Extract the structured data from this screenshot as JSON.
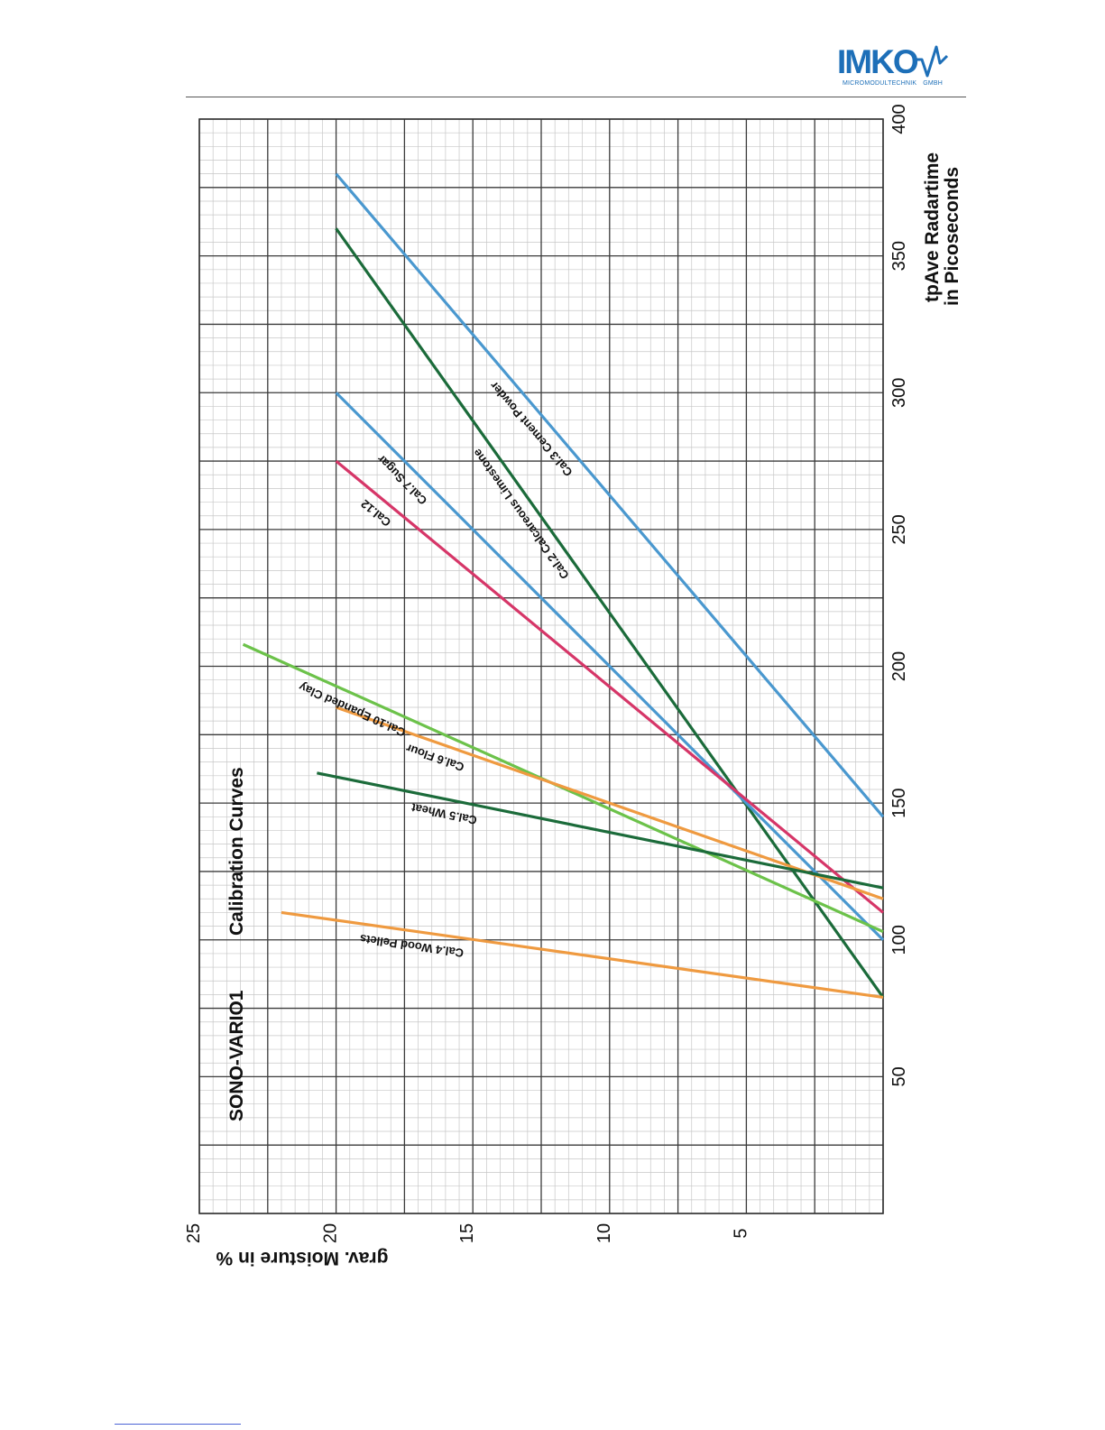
{
  "logo": {
    "name": "IMKO",
    "subtitle": "MICROMODULTECHNIK",
    "subtitle_suffix": "GMBH",
    "color": "#1d6fb8"
  },
  "chart_data": {
    "type": "line",
    "title": "SONO-VARIO1",
    "subtitle": "Calibration Curves",
    "xlabel": "grav. Moisture in %",
    "ylabel_line1": "tpAve  Radartime",
    "ylabel_line2": "in Picoseconds",
    "xlim": [
      0,
      25
    ],
    "ylim": [
      0,
      400
    ],
    "x_ticks": [
      5,
      10,
      15,
      20,
      25
    ],
    "y_ticks": [
      50,
      100,
      150,
      200,
      250,
      300,
      350,
      400
    ],
    "grid": true,
    "orientation": "rotated-90",
    "series": [
      {
        "name": "Cal.3   Cement Powder",
        "color": "#4a98cf",
        "x": [
          0,
          20
        ],
        "y": [
          145,
          380
        ]
      },
      {
        "name": "Cal.2  Calcareous Limestone",
        "color": "#1b6b3a",
        "x": [
          0,
          20
        ],
        "y": [
          79,
          360
        ]
      },
      {
        "name": "Cal.7   Sugar",
        "color": "#4a98cf",
        "x": [
          0,
          20
        ],
        "y": [
          100,
          300
        ]
      },
      {
        "name": "Cal.12",
        "color": "#d63668",
        "x": [
          0,
          20
        ],
        "y": [
          110,
          275
        ]
      },
      {
        "name": "Cal.10 Epanded Clay",
        "color": "#6cc24a",
        "x": [
          0,
          23.4
        ],
        "y": [
          103,
          208
        ]
      },
      {
        "name": "Cal.6   Flour",
        "color": "#ef9a40",
        "x": [
          0,
          20
        ],
        "y": [
          115,
          185
        ]
      },
      {
        "name": "Cal.5   Wheat",
        "color": "#1b6b3a",
        "x": [
          0,
          20.7
        ],
        "y": [
          119,
          161
        ]
      },
      {
        "name": "Cal.4   Wood Pellets",
        "color": "#ef9a40",
        "x": [
          0,
          22
        ],
        "y": [
          79,
          110
        ]
      }
    ]
  }
}
